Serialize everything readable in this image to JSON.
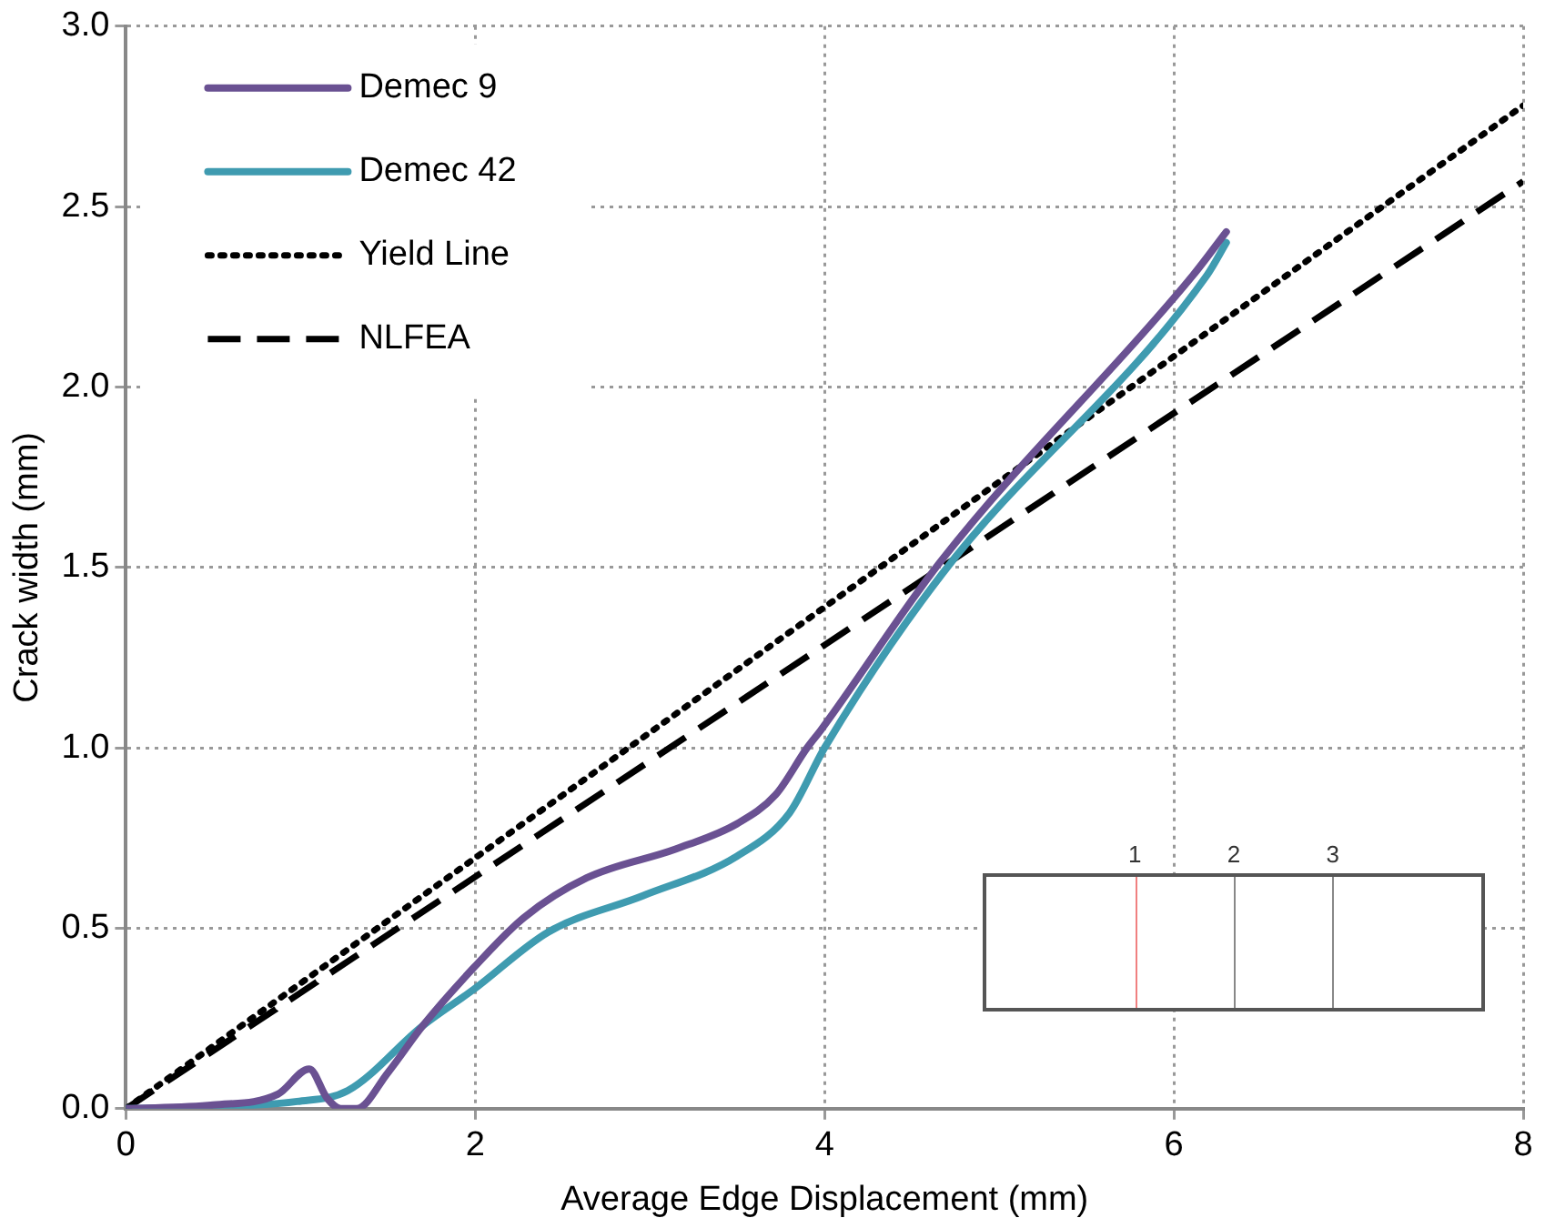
{
  "chart_data": {
    "type": "line",
    "xlabel": "Average Edge Displacement (mm)",
    "ylabel": "Crack width (mm)",
    "xlim": [
      0,
      8
    ],
    "xticks": [
      0,
      2,
      4,
      6,
      8
    ],
    "ylim": [
      0,
      3
    ],
    "yticks": [
      {
        "value": 0,
        "label": "0.0"
      },
      {
        "value": 0.5,
        "label": "0.5"
      },
      {
        "value": 1,
        "label": "1.0"
      },
      {
        "value": 1.5,
        "label": "1.5"
      },
      {
        "value": 2,
        "label": "2.0"
      },
      {
        "value": 2.5,
        "label": "2.5"
      },
      {
        "value": 3,
        "label": "3.0"
      }
    ],
    "grid": true,
    "legend": "top left",
    "marker": "none",
    "series": [
      {
        "name": "Demec 9",
        "color": "#6a5192",
        "line_style": "solid",
        "x": [
          0,
          0.5,
          0.87,
          1.05,
          1.15,
          1.23,
          1.32,
          1.5,
          1.7,
          1.99,
          2.28,
          2.64,
          3.15,
          3.5,
          3.72,
          3.9,
          3.98,
          4.67,
          6.11,
          6.3
        ],
        "values": [
          0,
          0.01,
          0.04,
          0.11,
          0.03,
          0,
          0,
          0.1,
          0.23,
          0.39,
          0.53,
          0.64,
          0.72,
          0.79,
          0.87,
          1.0,
          1.05,
          1.52,
          2.31,
          2.43
        ]
      },
      {
        "name": "Demec 42",
        "color": "#3f9bb0",
        "line_style": "solid",
        "x": [
          0,
          0.5,
          0.98,
          1.27,
          1.7,
          1.99,
          2.42,
          2.96,
          3.5,
          3.8,
          4.0,
          4.67,
          6.19,
          6.3
        ],
        "values": [
          0,
          0.005,
          0.02,
          0.05,
          0.23,
          0.33,
          0.49,
          0.59,
          0.7,
          0.82,
          1.0,
          1.48,
          2.31,
          2.4
        ]
      },
      {
        "name": "Yield Line",
        "color": "#000000",
        "line_style": "dotted",
        "x": [
          0,
          8
        ],
        "values": [
          0,
          2.78
        ]
      },
      {
        "name": "NLFEA",
        "color": "#000000",
        "line_style": "dashed",
        "x": [
          0,
          8
        ],
        "values": [
          0,
          2.57
        ]
      }
    ],
    "annotations": [
      "1",
      "2",
      "3"
    ]
  }
}
